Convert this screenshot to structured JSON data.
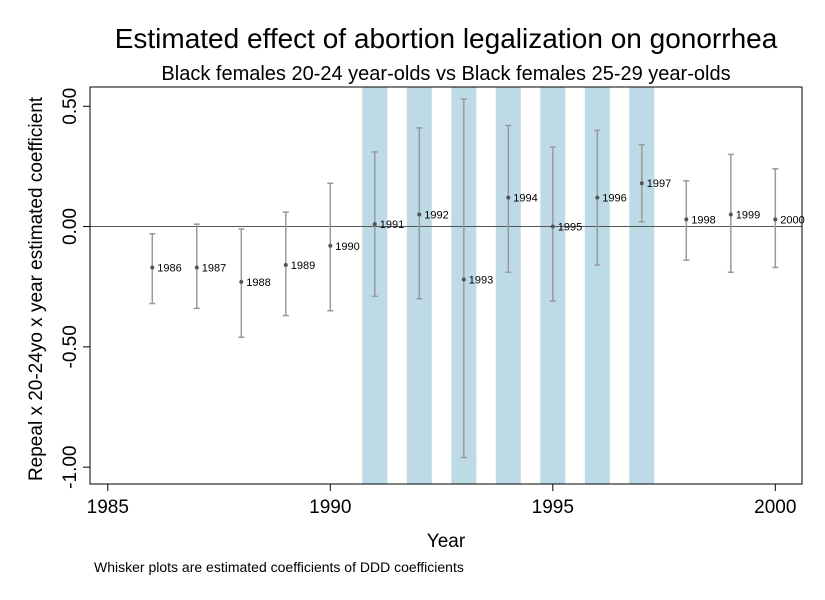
{
  "chart_data": {
    "type": "scatter",
    "title": "Estimated effect of abortion legalization on gonorrhea",
    "subtitle": "Black females 20-24 year-olds vs Black females 25-29 year-olds",
    "xlabel": "Year",
    "ylabel": "Repeal x 20-24yo x year estimated coefficient",
    "note": "Whisker plots are estimated coefficients of DDD coefficients",
    "xlim": [
      1984.6,
      2000.6
    ],
    "ylim": [
      -1.07,
      0.58
    ],
    "xticks": [
      1985,
      1990,
      1995,
      2000
    ],
    "xtick_labels": [
      "1985",
      "1990",
      "1995",
      "2000"
    ],
    "yticks": [
      0.5,
      0.0,
      -0.5,
      -1.0
    ],
    "ytick_labels": [
      "0.50",
      "0.00",
      "-0.50",
      "-1.00"
    ],
    "reference_line_y": 0,
    "shaded_years": [
      1991,
      1992,
      1993,
      1994,
      1995,
      1996,
      1997
    ],
    "shade_color": "#bcdbe6",
    "whisker_color": "#9a9a9a",
    "point_color": "#555555",
    "points": [
      {
        "year": 1986,
        "label": "1986",
        "estimate": -0.17,
        "lower": -0.32,
        "upper": -0.03
      },
      {
        "year": 1987,
        "label": "1987",
        "estimate": -0.17,
        "lower": -0.34,
        "upper": 0.01
      },
      {
        "year": 1988,
        "label": "1988",
        "estimate": -0.23,
        "lower": -0.46,
        "upper": -0.01
      },
      {
        "year": 1989,
        "label": "1989",
        "estimate": -0.16,
        "lower": -0.37,
        "upper": 0.06
      },
      {
        "year": 1990,
        "label": "1990",
        "estimate": -0.08,
        "lower": -0.35,
        "upper": 0.18
      },
      {
        "year": 1991,
        "label": "1991",
        "estimate": 0.01,
        "lower": -0.29,
        "upper": 0.31
      },
      {
        "year": 1992,
        "label": "1992",
        "estimate": 0.05,
        "lower": -0.3,
        "upper": 0.41
      },
      {
        "year": 1993,
        "label": "1993",
        "estimate": -0.22,
        "lower": -0.96,
        "upper": 0.53
      },
      {
        "year": 1994,
        "label": "1994",
        "estimate": 0.12,
        "lower": -0.19,
        "upper": 0.42
      },
      {
        "year": 1995,
        "label": "1995",
        "estimate": 0.0,
        "lower": -0.31,
        "upper": 0.33
      },
      {
        "year": 1996,
        "label": "1996",
        "estimate": 0.12,
        "lower": -0.16,
        "upper": 0.4
      },
      {
        "year": 1997,
        "label": "1997",
        "estimate": 0.18,
        "lower": 0.02,
        "upper": 0.34
      },
      {
        "year": 1998,
        "label": "1998",
        "estimate": 0.03,
        "lower": -0.14,
        "upper": 0.19
      },
      {
        "year": 1999,
        "label": "1999",
        "estimate": 0.05,
        "lower": -0.19,
        "upper": 0.3
      },
      {
        "year": 2000,
        "label": "2000",
        "estimate": 0.03,
        "lower": -0.17,
        "upper": 0.24
      }
    ]
  }
}
